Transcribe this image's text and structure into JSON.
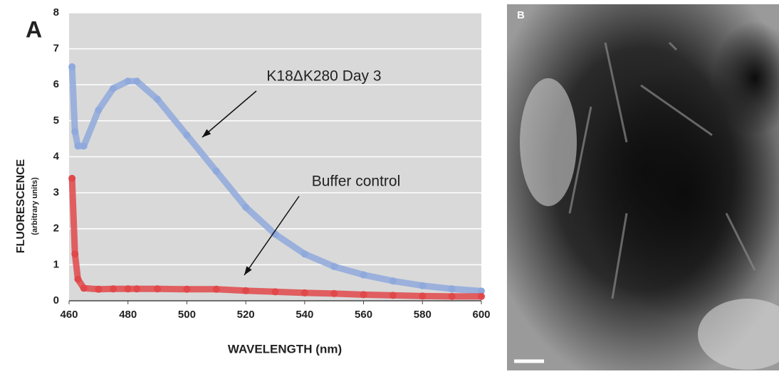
{
  "chart_data": {
    "type": "scatter",
    "panel_label": "A",
    "x_label": "WAVELENGTH (nm)",
    "y_label": "FLUORESCENCE",
    "y_sublabel": "(arbitrary units)",
    "x": [
      461,
      462,
      463,
      465,
      470,
      475,
      480,
      483,
      490,
      500,
      510,
      520,
      530,
      540,
      550,
      560,
      570,
      580,
      590,
      600
    ],
    "series": [
      {
        "color": "#8fa9dc",
        "values": [
          6.5,
          4.7,
          4.3,
          4.3,
          5.3,
          5.9,
          6.1,
          6.1,
          5.6,
          4.6,
          3.6,
          2.6,
          1.85,
          1.3,
          0.95,
          0.72,
          0.55,
          0.42,
          0.33,
          0.27
        ]
      },
      {
        "color": "#e0484a",
        "values": [
          3.4,
          1.3,
          0.6,
          0.35,
          0.32,
          0.33,
          0.33,
          0.33,
          0.33,
          0.32,
          0.32,
          0.28,
          0.25,
          0.22,
          0.2,
          0.17,
          0.15,
          0.13,
          0.12,
          0.12
        ]
      }
    ],
    "annotations": [
      "K18ΔK280 Day 3",
      "Buffer control"
    ],
    "xlim": [
      460,
      600
    ],
    "xticks": [
      460,
      480,
      500,
      520,
      540,
      560,
      580,
      600
    ],
    "ylim": [
      0,
      8
    ],
    "yticks": [
      0,
      1,
      2,
      3,
      4,
      5,
      6,
      7,
      8
    ],
    "grid": true
  },
  "panel_b": {
    "label": "B"
  }
}
